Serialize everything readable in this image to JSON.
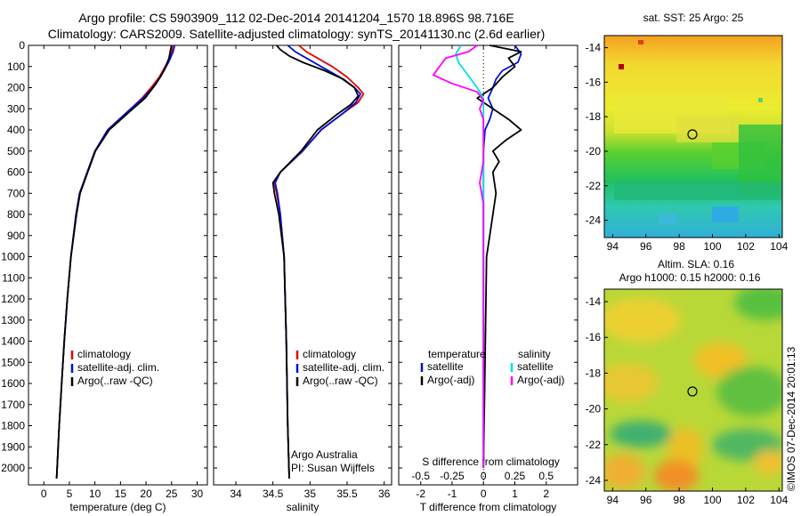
{
  "header": {
    "line1": "Argo profile: CS 5903909_112 02-Dec-2014 20141204_1570 18.896S 98.716E",
    "line2": "Climatology: CARS2009. Satellite-adjusted climatology: synTS_20141130.nc (2.6d earlier)"
  },
  "colors": {
    "climatology": "#e00000",
    "satellite": "#0010d0",
    "argo": "#000000",
    "sal_satellite": "#00e0e0",
    "sal_argo": "#ff00ff"
  },
  "credit": "©IMOS 07-Dec-2014 20:01:13",
  "chart_data": [
    {
      "id": "temperature",
      "type": "line",
      "xlabel": "temperature (deg C)",
      "ylabel": "",
      "xlim": [
        -3,
        32
      ],
      "ylim": [
        2080,
        0
      ],
      "xticks": [
        0,
        5,
        10,
        15,
        20,
        25,
        30
      ],
      "xtick_labels": [
        "0",
        "5",
        "10",
        "15",
        "20",
        "25",
        "30"
      ],
      "yticks": [
        0,
        100,
        200,
        300,
        400,
        500,
        600,
        700,
        800,
        900,
        1000,
        1100,
        1200,
        1300,
        1400,
        1500,
        1600,
        1700,
        1800,
        1900,
        2000
      ],
      "ytick_labels": [
        "0",
        "100",
        "200",
        "300",
        "400",
        "500",
        "600",
        "700",
        "800",
        "900",
        "1000",
        "1100",
        "1200",
        "1300",
        "1400",
        "1500",
        "1600",
        "1700",
        "1800",
        "1900",
        "2000"
      ],
      "legend": [
        "climatology",
        "satellite-adj. clim.",
        "Argo(..raw -QC)"
      ],
      "series": [
        {
          "name": "climatology",
          "color": "#e00000",
          "depth": [
            0,
            30,
            80,
            150,
            200,
            250,
            300,
            400,
            500,
            600,
            700,
            800,
            1000,
            1200,
            1400,
            1600,
            1800,
            2000,
            2050
          ],
          "values": [
            25.2,
            25.0,
            24.2,
            22.6,
            21.0,
            19.2,
            17.0,
            12.5,
            10.0,
            8.5,
            7.0,
            6.3,
            5.3,
            4.6,
            4.0,
            3.5,
            3.0,
            2.6,
            2.5
          ]
        },
        {
          "name": "satellite-adj. clim.",
          "color": "#0010d0",
          "depth": [
            0,
            30,
            80,
            150,
            200,
            250,
            300,
            400,
            500,
            600,
            700,
            800,
            1000,
            1200,
            1400,
            1600,
            1800,
            2000,
            2050
          ],
          "values": [
            25.6,
            25.3,
            24.4,
            22.8,
            21.3,
            19.4,
            17.0,
            12.5,
            10.0,
            8.5,
            7.0,
            6.3,
            5.3,
            4.6,
            4.0,
            3.5,
            3.0,
            2.6,
            2.5
          ]
        },
        {
          "name": "Argo(..raw -QC)",
          "color": "#000000",
          "depth": [
            0,
            20,
            60,
            120,
            180,
            250,
            320,
            400,
            500,
            600,
            700,
            800,
            1000,
            1200,
            1400,
            1600,
            1800,
            2000,
            2050
          ],
          "values": [
            25.0,
            24.8,
            24.5,
            23.5,
            22.0,
            19.8,
            16.5,
            12.8,
            10.1,
            8.6,
            7.1,
            6.4,
            5.3,
            4.6,
            4.0,
            3.5,
            3.0,
            2.6,
            2.5
          ]
        }
      ]
    },
    {
      "id": "salinity",
      "type": "line",
      "xlabel": "salinity",
      "xlim": [
        33.7,
        36.1
      ],
      "ylim": [
        2080,
        0
      ],
      "xticks": [
        34,
        34.5,
        35,
        35.5,
        36
      ],
      "xtick_labels": [
        "34",
        "34.5",
        "35",
        "35.5",
        "36"
      ],
      "legend": [
        "climatology",
        "satellite-adj. clim.",
        "Argo(..raw -QC)"
      ],
      "annotation": [
        "Argo Australia",
        "PI: Susan Wijffels"
      ],
      "series": [
        {
          "name": "climatology",
          "color": "#e00000",
          "depth": [
            0,
            30,
            60,
            100,
            150,
            200,
            230,
            270,
            320,
            400,
            500,
            600,
            650,
            700,
            800,
            1000,
            1400,
            1800,
            2050
          ],
          "values": [
            34.85,
            34.95,
            35.1,
            35.3,
            35.5,
            35.65,
            35.72,
            35.65,
            35.45,
            35.15,
            34.9,
            34.6,
            34.52,
            34.55,
            34.6,
            34.65,
            34.68,
            34.7,
            34.72
          ]
        },
        {
          "name": "satellite-adj. clim.",
          "color": "#0010d0",
          "depth": [
            0,
            30,
            60,
            100,
            150,
            200,
            230,
            270,
            320,
            400,
            500,
            600,
            650,
            700,
            800,
            1000,
            1400,
            1800,
            2050
          ],
          "values": [
            34.7,
            34.8,
            34.95,
            35.15,
            35.4,
            35.6,
            35.68,
            35.62,
            35.45,
            35.15,
            34.9,
            34.6,
            34.53,
            34.56,
            34.6,
            34.65,
            34.68,
            34.7,
            34.72
          ]
        },
        {
          "name": "Argo(..raw -QC)",
          "color": "#000000",
          "depth": [
            0,
            20,
            50,
            80,
            120,
            160,
            200,
            240,
            280,
            330,
            400,
            500,
            600,
            650,
            700,
            800,
            1000,
            1400,
            1800,
            2050
          ],
          "values": [
            34.55,
            34.6,
            34.72,
            34.9,
            35.2,
            35.45,
            35.6,
            35.65,
            35.55,
            35.35,
            35.1,
            34.88,
            34.6,
            34.5,
            34.52,
            34.58,
            34.65,
            34.68,
            34.7,
            34.72
          ]
        }
      ]
    },
    {
      "id": "difference",
      "type": "line",
      "xlabel": "T difference from climatology",
      "xlabel_top": "S difference from climatology",
      "xlim": [
        -2.7,
        3.0
      ],
      "ylim": [
        2080,
        0
      ],
      "xticks": [
        -2,
        -1,
        0,
        1,
        2
      ],
      "xtick_labels": [
        "-2",
        "-1",
        "0",
        "1",
        "2"
      ],
      "s_ticks": [
        -0.5,
        -0.25,
        0,
        0.25,
        0.5
      ],
      "s_tick_labels": [
        "-0.5",
        "-0.25",
        "0",
        "0.25",
        "0.5"
      ],
      "s_scale": 4,
      "legend_temperature": {
        "title": "temperature",
        "items": [
          "satellite",
          "Argo(-adj)"
        ]
      },
      "legend_salinity": {
        "title": "salinity",
        "items": [
          "satellite",
          "Argo(-adj)"
        ]
      },
      "series": [
        {
          "name": "T satellite",
          "color": "#0010d0",
          "depth": [
            0,
            40,
            80,
            120,
            160,
            200,
            250,
            300,
            350,
            400,
            500,
            600,
            800,
            1000,
            1500,
            2000
          ],
          "values": [
            1.0,
            1.2,
            1.1,
            0.6,
            0.4,
            0.3,
            0.15,
            0.3,
            0.2,
            0.05,
            0.0,
            0.0,
            0.0,
            0.0,
            0.0,
            0.0
          ]
        },
        {
          "name": "T Argo(-adj)",
          "color": "#000000",
          "depth": [
            0,
            30,
            60,
            100,
            150,
            200,
            250,
            300,
            350,
            400,
            450,
            500,
            550,
            600,
            700,
            800,
            900,
            1000,
            1500,
            2000
          ],
          "values": [
            0.2,
            1.2,
            0.8,
            1.0,
            0.6,
            0.3,
            -0.2,
            0.3,
            0.8,
            1.2,
            0.7,
            0.3,
            0.5,
            0.3,
            0.4,
            0.3,
            0.2,
            0.1,
            0.05,
            0.0
          ]
        },
        {
          "name": "S satellite",
          "color": "#00e0e0",
          "depth": [
            0,
            40,
            80,
            120,
            160,
            200,
            250,
            300,
            400,
            500,
            700,
            1000,
            1500,
            2000
          ],
          "values": [
            -0.18,
            -0.22,
            -0.2,
            -0.15,
            -0.1,
            -0.05,
            0.0,
            0.0,
            0.0,
            0.0,
            0.0,
            0.0,
            0.0,
            0.0
          ]
        },
        {
          "name": "S Argo(-adj)",
          "color": "#ff00ff",
          "depth": [
            0,
            30,
            60,
            100,
            140,
            180,
            220,
            260,
            300,
            350,
            450,
            550,
            650,
            750,
            900,
            1200,
            2000
          ],
          "values": [
            -0.05,
            -0.12,
            -0.3,
            -0.35,
            -0.4,
            -0.25,
            -0.05,
            0.0,
            -0.03,
            0.0,
            0.0,
            0.0,
            -0.03,
            0.0,
            0.0,
            0.0,
            0.0
          ]
        }
      ]
    }
  ],
  "maps": [
    {
      "id": "sst",
      "title": [
        "sat. SST: 25 Argo: 25"
      ],
      "xticks": [
        94,
        96,
        98,
        100,
        102,
        104
      ],
      "yticks": [
        -14,
        -16,
        -18,
        -20,
        -22,
        -24
      ],
      "xtick_labels": [
        "94",
        "96",
        "98",
        "100",
        "102",
        "104"
      ],
      "ytick_labels": [
        "-14",
        "-16",
        "-18",
        "-20",
        "-22",
        "-24"
      ],
      "xlim": [
        93.5,
        104.2
      ],
      "ylim": [
        -13.3,
        -25.0
      ],
      "marker": {
        "lon": 98.716,
        "lat": -18.896
      }
    },
    {
      "id": "sla",
      "title": [
        "Altim. SLA: 0.16",
        "Argo h1000: 0.15 h2000: 0.16"
      ],
      "xticks": [
        94,
        96,
        98,
        100,
        102,
        104
      ],
      "yticks": [
        -14,
        -16,
        -18,
        -20,
        -22,
        -24
      ],
      "xtick_labels": [
        "94",
        "96",
        "98",
        "100",
        "102",
        "104"
      ],
      "ytick_labels": [
        "-14",
        "-16",
        "-18",
        "-20",
        "-22",
        "-24"
      ],
      "xlim": [
        93.5,
        104.2
      ],
      "ylim": [
        -13.3,
        -24.6
      ],
      "marker": {
        "lon": 98.716,
        "lat": -18.896
      }
    }
  ]
}
